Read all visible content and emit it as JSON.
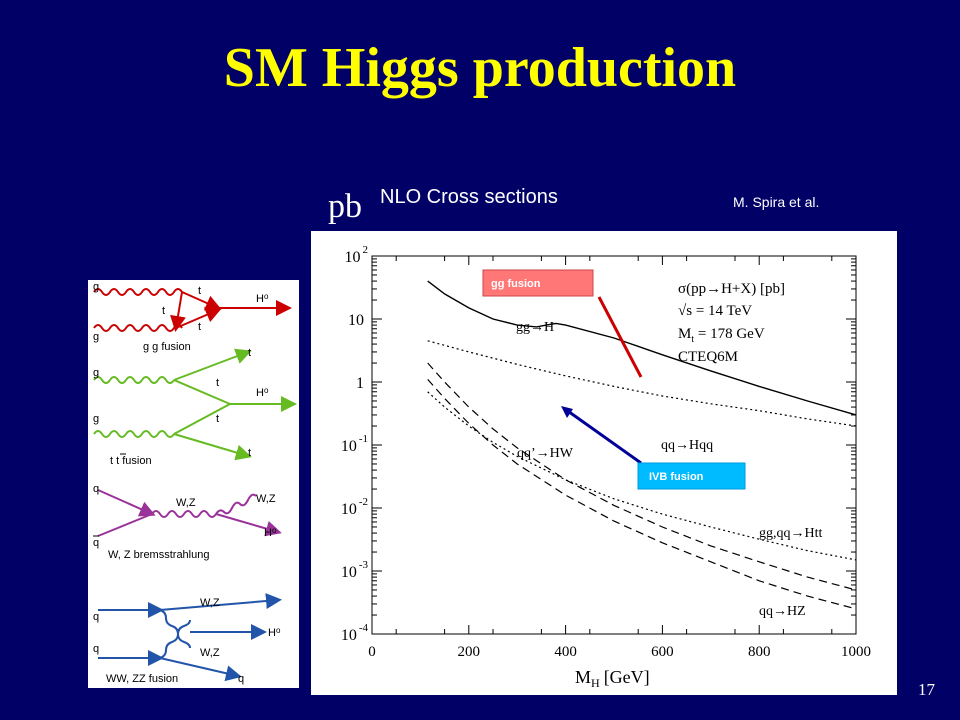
{
  "slide": {
    "title": "SM Higgs production",
    "page_number": "17",
    "unit_label": "pb",
    "plot_heading": "NLO Cross sections",
    "credit": "M. Spira et al."
  },
  "diagrams": {
    "gg_fusion": {
      "caption": "g g fusion",
      "color": "#cc0000",
      "labels": [
        "g",
        "g",
        "t",
        "t",
        "t",
        "H",
        "o"
      ]
    },
    "ttbar_fusion": {
      "caption": "t t fusion",
      "caption_bar": "t",
      "color": "#66bb22",
      "labels": [
        "t",
        "g",
        "t",
        "H",
        "o",
        "g",
        "t",
        "t"
      ]
    },
    "bremsstrahlung": {
      "caption": "W, Z bremsstrahlung",
      "color": "#993399",
      "labels": [
        "q",
        "W,Z",
        "W,Z",
        "q",
        "H",
        "o"
      ]
    },
    "vbf": {
      "caption": "WW, ZZ fusion",
      "color": "#2255aa",
      "labels": [
        "W,Z",
        "q",
        "H",
        "o",
        "q",
        "W,Z",
        "q"
      ]
    }
  },
  "callouts": {
    "gg": {
      "label": "gg fusion",
      "color": "#ff7777",
      "arrow_color": "#cc0000"
    },
    "ivb": {
      "label": "IVB fusion",
      "color": "#00bbff",
      "arrow_color": "#000099"
    }
  },
  "chart_data": {
    "type": "line",
    "title": "",
    "xlabel": "M",
    "xlabel_sub": "H",
    "xlabel_unit": "[GeV]",
    "ylabel": "",
    "xlim": [
      0,
      1000
    ],
    "ylim": [
      0.0001,
      100
    ],
    "yscale": "log",
    "grid": false,
    "x_ticks": [
      "0",
      "200",
      "400",
      "600",
      "800",
      "1000"
    ],
    "y_ticks": [
      {
        "base": "10",
        "exp": "-4"
      },
      {
        "base": "10",
        "exp": "-3"
      },
      {
        "base": "10",
        "exp": "-2"
      },
      {
        "base": "10",
        "exp": "-1"
      },
      {
        "base": "1",
        "exp": ""
      },
      {
        "base": "10",
        "exp": ""
      },
      {
        "base": "10",
        "exp": "2"
      }
    ],
    "info_box": [
      "σ(pp→H+X) [pb]",
      "√s = 14 TeV",
      "M",
      "t",
      " = 178 GeV",
      "CTEQ6M"
    ],
    "series": [
      {
        "name": "gg→H",
        "style": "solid",
        "x": [
          115,
          150,
          200,
          250,
          300,
          340,
          360,
          380,
          400,
          500,
          600,
          700,
          800,
          900,
          1000
        ],
        "y": [
          40,
          25,
          15,
          10,
          8,
          7.5,
          8,
          8.5,
          8,
          5,
          2.7,
          1.5,
          0.85,
          0.5,
          0.3
        ]
      },
      {
        "name": "qq→Hqq",
        "style": "dotted",
        "x": [
          115,
          200,
          300,
          400,
          500,
          600,
          700,
          800,
          900,
          1000
        ],
        "y": [
          4.5,
          3.0,
          1.9,
          1.25,
          0.85,
          0.6,
          0.45,
          0.35,
          0.26,
          0.2
        ]
      },
      {
        "name": "qq'→HW",
        "style": "dashed",
        "x": [
          115,
          150,
          200,
          250,
          300,
          400,
          500,
          600,
          700,
          800,
          900,
          1000
        ],
        "y": [
          2,
          1.0,
          0.4,
          0.18,
          0.09,
          0.028,
          0.011,
          0.005,
          0.0025,
          0.0014,
          0.0008,
          0.0005
        ]
      },
      {
        "name": "qq→HZ",
        "style": "dashed",
        "x": [
          115,
          150,
          200,
          250,
          300,
          400,
          500,
          600,
          700,
          800,
          900,
          1000
        ],
        "y": [
          1.1,
          0.55,
          0.22,
          0.1,
          0.05,
          0.016,
          0.0062,
          0.0028,
          0.0014,
          0.0007,
          0.0004,
          0.00025
        ]
      },
      {
        "name": "gg,qq→Htt",
        "style": "dotted",
        "x": [
          115,
          150,
          200,
          250,
          300,
          400,
          500,
          600,
          700,
          800,
          900,
          1000
        ],
        "y": [
          0.7,
          0.4,
          0.2,
          0.11,
          0.066,
          0.028,
          0.014,
          0.008,
          0.005,
          0.0032,
          0.0021,
          0.0015
        ]
      }
    ],
    "curve_labels": [
      {
        "parts": [
          "gg",
          "→",
          "H"
        ]
      },
      {
        "parts": [
          "qq",
          "→",
          "Hqq"
        ]
      },
      {
        "parts": [
          "qq",
          "’",
          "→",
          "HW"
        ]
      },
      {
        "parts": [
          "gg,qq",
          "→",
          "Htt"
        ]
      },
      {
        "parts": [
          "qq",
          "→",
          "HZ"
        ]
      }
    ]
  }
}
